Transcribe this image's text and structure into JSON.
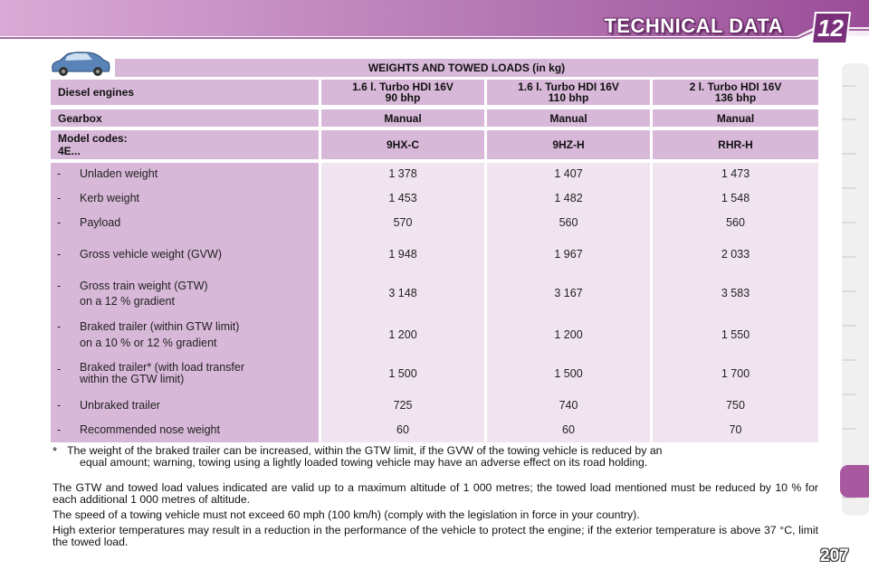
{
  "header": {
    "title": "TECHNICAL DATA",
    "chapter": "12"
  },
  "table": {
    "title": "WEIGHTS AND TOWED LOADS (in kg)",
    "engine_label": "Diesel engines",
    "engines": [
      [
        "1.6 l. Turbo HDI 16V",
        "90 bhp"
      ],
      [
        "1.6 l. Turbo HDI 16V",
        "110 bhp"
      ],
      [
        "2 l. Turbo HDI 16V",
        "136 bhp"
      ]
    ],
    "gearbox_label": "Gearbox",
    "gearboxes": [
      "Manual",
      "Manual",
      "Manual"
    ],
    "model_label_1": "Model codes:",
    "model_label_2": "4E...",
    "models": [
      "9HX-C",
      "9HZ-H",
      "RHR-H"
    ],
    "rows": [
      {
        "dash": "-",
        "label": [
          "Unladen weight"
        ],
        "values": [
          "1 378",
          "1 407",
          "1 473"
        ]
      },
      {
        "dash": "-",
        "label": [
          "Kerb weight"
        ],
        "values": [
          "1 453",
          "1 482",
          "1 548"
        ]
      },
      {
        "dash": "-",
        "label": [
          "Payload"
        ],
        "values": [
          "570",
          "560",
          "560"
        ]
      },
      {
        "dash": "-",
        "label": [
          "Gross vehicle weight (GVW)"
        ],
        "values": [
          "1 948",
          "1 967",
          "2 033"
        ]
      },
      {
        "dash": "-",
        "label": [
          "Gross train weight (GTW)",
          "on a 12 % gradient"
        ],
        "values": [
          "3 148",
          "3 167",
          "3 583"
        ]
      },
      {
        "dash": "-",
        "label": [
          "Braked trailer (within GTW limit)",
          "on a 10 % or 12 % gradient"
        ],
        "values": [
          "1 200",
          "1 200",
          "1 550"
        ]
      },
      {
        "dash": "-",
        "label": [
          "Braked trailer* (with load transfer",
          "within the GTW limit)"
        ],
        "values": [
          "1 500",
          "1 500",
          "1 700"
        ]
      },
      {
        "dash": "-",
        "label": [
          "Unbraked trailer"
        ],
        "values": [
          "725",
          "740",
          "750"
        ]
      },
      {
        "dash": "-",
        "label": [
          "Recommended nose weight"
        ],
        "values": [
          "60",
          "60",
          "70"
        ]
      }
    ]
  },
  "notes": {
    "footnote_mark": "*",
    "footnote_line1": "The weight of the braked trailer can be increased, within the GTW limit, if the GVW of the towing vehicle is reduced by an",
    "footnote_line2": "equal amount; warning, towing using a lightly loaded towing vehicle may have an adverse effect on its road holding.",
    "para1": "The GTW and towed load values indicated are valid up to a maximum altitude of 1 000 metres; the towed load mentioned must be reduced by 10 % for each additional 1 000 metres of altitude.",
    "para2": "The speed of a towing vehicle must not exceed 60 mph (100 km/h) (comply with the legislation in force in your country).",
    "para3": "High exterior temperatures may result in a reduction in the performance of the vehicle to protect the engine; if the exterior temperature is above 37 °C, limit the towed load."
  },
  "page_number": "207",
  "colors": {
    "header": "#b06aae",
    "band": "#d8b8d8",
    "light": "#efe4ef",
    "tab": "#a8589e"
  },
  "icons": {
    "car": "car-icon",
    "badge": "chapter-badge"
  }
}
